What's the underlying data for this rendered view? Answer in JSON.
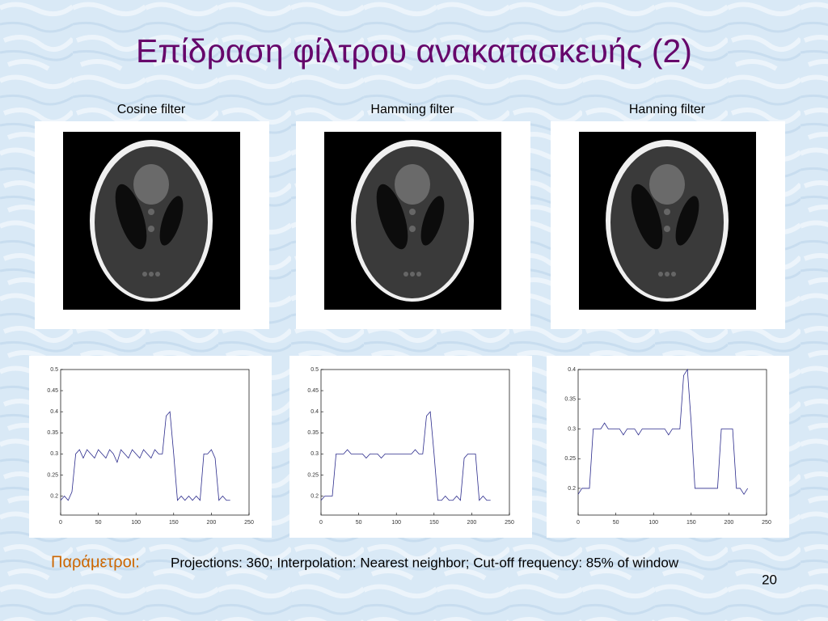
{
  "title": "Επίδραση φίλτρου ανακατασκευής (2)",
  "panels": [
    {
      "label": "Cosine filter",
      "plot": {
        "type": "line",
        "color": "#2b2b8c",
        "x": [
          0,
          5,
          10,
          15,
          20,
          25,
          30,
          35,
          40,
          45,
          50,
          55,
          60,
          65,
          70,
          75,
          80,
          85,
          90,
          95,
          100,
          105,
          110,
          115,
          120,
          125,
          130,
          135,
          140,
          145,
          150,
          155,
          160,
          165,
          170,
          175,
          180,
          185,
          190,
          195,
          200,
          205,
          210,
          215,
          220,
          225
        ],
        "values": [
          0.19,
          0.2,
          0.19,
          0.21,
          0.3,
          0.31,
          0.29,
          0.31,
          0.3,
          0.29,
          0.31,
          0.3,
          0.29,
          0.31,
          0.3,
          0.28,
          0.31,
          0.3,
          0.29,
          0.31,
          0.3,
          0.29,
          0.31,
          0.3,
          0.29,
          0.31,
          0.3,
          0.3,
          0.39,
          0.4,
          0.3,
          0.19,
          0.2,
          0.19,
          0.2,
          0.19,
          0.2,
          0.19,
          0.3,
          0.3,
          0.31,
          0.29,
          0.19,
          0.2,
          0.19,
          0.19
        ],
        "xlim": [
          0,
          250
        ],
        "ylim": [
          0.155,
          0.5
        ],
        "xticks": [
          0,
          50,
          100,
          150,
          200,
          250
        ],
        "yticks": [
          0.2,
          0.25,
          0.3,
          0.35,
          0.4,
          0.45,
          0.5
        ]
      }
    },
    {
      "label": "Hamming filter",
      "plot": {
        "type": "line",
        "color": "#2b2b8c",
        "x": [
          0,
          5,
          10,
          15,
          20,
          25,
          30,
          35,
          40,
          45,
          50,
          55,
          60,
          65,
          70,
          75,
          80,
          85,
          90,
          95,
          100,
          105,
          110,
          115,
          120,
          125,
          130,
          135,
          140,
          145,
          150,
          155,
          160,
          165,
          170,
          175,
          180,
          185,
          190,
          195,
          200,
          205,
          210,
          215,
          220,
          225
        ],
        "values": [
          0.19,
          0.2,
          0.2,
          0.2,
          0.3,
          0.3,
          0.3,
          0.31,
          0.3,
          0.3,
          0.3,
          0.3,
          0.29,
          0.3,
          0.3,
          0.3,
          0.29,
          0.3,
          0.3,
          0.3,
          0.3,
          0.3,
          0.3,
          0.3,
          0.3,
          0.31,
          0.3,
          0.3,
          0.39,
          0.4,
          0.3,
          0.19,
          0.19,
          0.2,
          0.19,
          0.19,
          0.2,
          0.19,
          0.29,
          0.3,
          0.3,
          0.3,
          0.19,
          0.2,
          0.19,
          0.19
        ],
        "xlim": [
          0,
          250
        ],
        "ylim": [
          0.155,
          0.5
        ],
        "xticks": [
          0,
          50,
          100,
          150,
          200,
          250
        ],
        "yticks": [
          0.2,
          0.25,
          0.3,
          0.35,
          0.4,
          0.45,
          0.5
        ]
      }
    },
    {
      "label": "Hanning filter",
      "plot": {
        "type": "line",
        "color": "#2b2b8c",
        "x": [
          0,
          5,
          10,
          15,
          20,
          25,
          30,
          35,
          40,
          45,
          50,
          55,
          60,
          65,
          70,
          75,
          80,
          85,
          90,
          95,
          100,
          105,
          110,
          115,
          120,
          125,
          130,
          135,
          140,
          145,
          150,
          155,
          160,
          165,
          170,
          175,
          180,
          185,
          190,
          195,
          200,
          205,
          210,
          215,
          220,
          225
        ],
        "values": [
          0.19,
          0.2,
          0.2,
          0.2,
          0.3,
          0.3,
          0.3,
          0.31,
          0.3,
          0.3,
          0.3,
          0.3,
          0.29,
          0.3,
          0.3,
          0.3,
          0.29,
          0.3,
          0.3,
          0.3,
          0.3,
          0.3,
          0.3,
          0.3,
          0.29,
          0.3,
          0.3,
          0.3,
          0.39,
          0.4,
          0.31,
          0.2,
          0.2,
          0.2,
          0.2,
          0.2,
          0.2,
          0.2,
          0.3,
          0.3,
          0.3,
          0.3,
          0.2,
          0.2,
          0.19,
          0.2
        ],
        "xlim": [
          0,
          250
        ],
        "ylim": [
          0.155,
          0.4
        ],
        "xticks": [
          0,
          50,
          100,
          150,
          200,
          250
        ],
        "yticks": [
          0.2,
          0.25,
          0.3,
          0.35,
          0.4
        ]
      }
    }
  ],
  "footer": {
    "label": "Παράμετροι:",
    "text": "Projections: 360; Interpolation: Nearest neighbor;  Cut-off frequency: 85% of window",
    "page": "20"
  }
}
